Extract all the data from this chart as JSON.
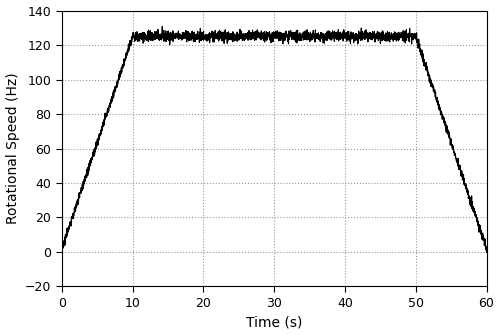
{
  "title": "",
  "xlabel": "Time (s)",
  "ylabel": "Rotational Speed (Hz)",
  "xlim": [
    0,
    60
  ],
  "ylim": [
    -20,
    140
  ],
  "xticks": [
    0,
    10,
    20,
    30,
    40,
    50,
    60
  ],
  "yticks": [
    -20,
    0,
    20,
    40,
    60,
    80,
    100,
    120,
    140
  ],
  "ramp_up_start": 0.0,
  "ramp_up_end": 10.0,
  "flat_start": 10.0,
  "flat_end": 50.0,
  "ramp_down_start": 50.0,
  "ramp_down_end": 60.0,
  "flat_value": 125.0,
  "start_value": 2.0,
  "end_value": 2.0,
  "noise_amplitude_flat": 1.5,
  "noise_amplitude_ramp": 1.2,
  "noise_seed": 42,
  "line_color": "#000000",
  "line_width": 0.8,
  "grid_color": "#999999",
  "grid_style": ":",
  "grid_alpha": 1.0,
  "background_color": "#ffffff",
  "figsize": [
    5.0,
    3.35
  ],
  "dpi": 100
}
